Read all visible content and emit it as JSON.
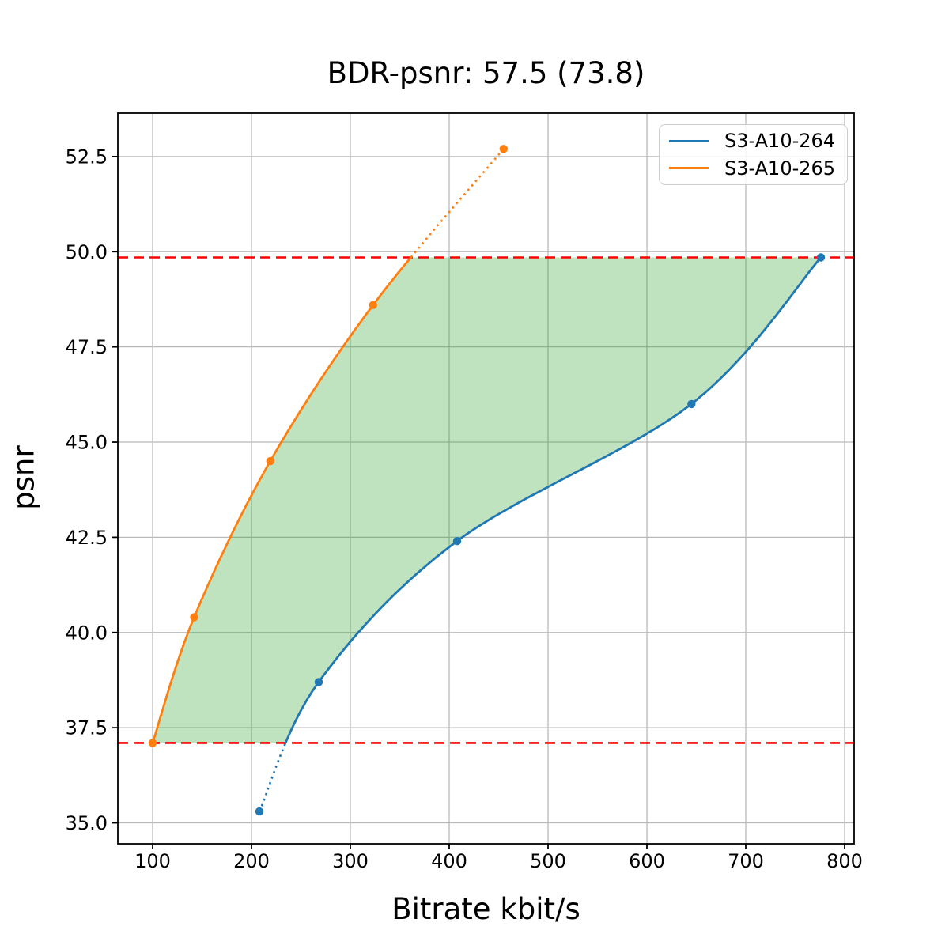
{
  "chart_data": {
    "type": "line",
    "title": "BDR-psnr: 57.5 (73.8)",
    "xlabel": "Bitrate kbit/s",
    "ylabel": "psnr",
    "xlim": [
      64.8,
      809.6
    ],
    "ylim": [
      34.45,
      53.64
    ],
    "xticks": [
      100,
      200,
      300,
      400,
      500,
      600,
      700,
      800
    ],
    "yticks": [
      35.0,
      37.5,
      40.0,
      42.5,
      45.0,
      47.5,
      50.0,
      52.5
    ],
    "grid": true,
    "grid_color": "#b9b9b9",
    "legend_position": "upper right",
    "series": [
      {
        "name": "S3-A10-264",
        "color": "#1f77b4",
        "marker": "o",
        "points": [
          [
            208,
            35.3
          ],
          [
            268,
            38.7
          ],
          [
            408,
            42.4
          ],
          [
            645,
            46.0
          ],
          [
            776,
            49.85
          ]
        ]
      },
      {
        "name": "S3-A10-265",
        "color": "#ff7f0e",
        "marker": "o",
        "points": [
          [
            100,
            37.1
          ],
          [
            142,
            40.4
          ],
          [
            219,
            44.5
          ],
          [
            323,
            48.6
          ],
          [
            455,
            52.7
          ]
        ]
      }
    ],
    "integration_range": [
      37.1,
      49.85
    ],
    "hlines": {
      "values": [
        37.1,
        49.85
      ],
      "color": "#ff0000",
      "style": "dashed"
    },
    "fill_color": "rgba(44,160,44,0.3)",
    "outside_range_line_style": "dotted"
  }
}
